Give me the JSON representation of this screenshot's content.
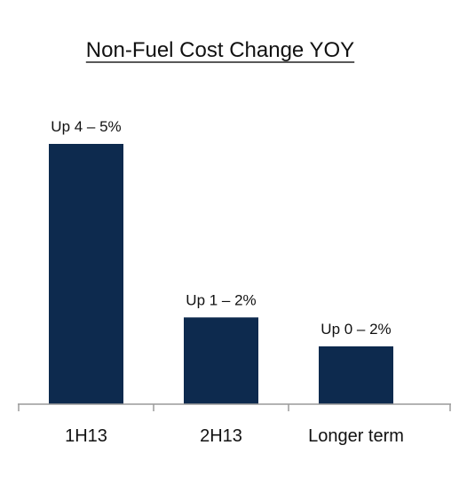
{
  "chart_data": {
    "type": "bar",
    "title": "Non-Fuel Cost Change YOY",
    "categories": [
      "1H13",
      "2H13",
      "Longer term"
    ],
    "values": [
      4.5,
      1.5,
      1.0
    ],
    "data_labels": [
      "Up 4 – 5%",
      "Up 1 – 2%",
      "Up 0 – 2%"
    ],
    "ylim": [
      0,
      5
    ],
    "xlabel": "",
    "ylabel": "",
    "grid": false,
    "legend": "none",
    "bar_color": "#0d2a4e",
    "axis_color": "#9a9a9a"
  }
}
